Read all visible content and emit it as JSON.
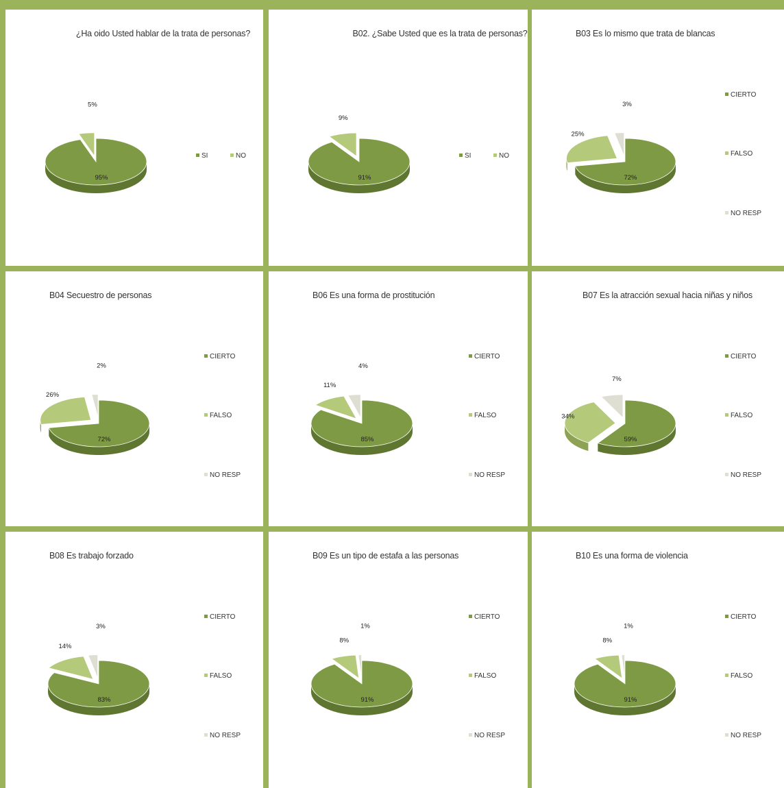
{
  "legend_colors": {
    "primary": "#7e9a44",
    "secondary": "#b5c97b",
    "tertiary": "#dedfd2"
  },
  "chart_data": [
    {
      "type": "pie",
      "title": "¿Ha oido Usted hablar de la trata de personas?",
      "legend": "right",
      "labels": [
        "SI",
        "NO"
      ],
      "values": [
        95,
        5
      ],
      "value_labels": [
        "95%",
        "5%"
      ]
    },
    {
      "type": "pie",
      "title": "B02. ¿Sabe Usted que es la trata de personas?",
      "legend": "right",
      "labels": [
        "SI",
        "NO"
      ],
      "values": [
        91,
        9
      ],
      "value_labels": [
        "91%",
        "9%"
      ]
    },
    {
      "type": "pie",
      "title": "B03 Es lo mismo que trata de blancas",
      "legend": "right",
      "labels": [
        "CIERTO",
        "FALSO",
        "NO RESP"
      ],
      "values": [
        72,
        25,
        3
      ],
      "value_labels": [
        "72%",
        "25%",
        "3%"
      ]
    },
    {
      "type": "pie",
      "title": "B04 Secuestro de personas",
      "legend": "right",
      "labels": [
        "CIERTO",
        "FALSO",
        "NO RESP"
      ],
      "values": [
        72,
        26,
        2
      ],
      "value_labels": [
        "72%",
        "26%",
        "2%"
      ]
    },
    {
      "type": "pie",
      "title": "B06 Es una forma de prostitución",
      "legend": "right",
      "labels": [
        "CIERTO",
        "FALSO",
        "NO RESP"
      ],
      "values": [
        85,
        11,
        4
      ],
      "value_labels": [
        "85%",
        "11%",
        "4%"
      ]
    },
    {
      "type": "pie",
      "title": "B07 Es la atracción sexual hacia niñas y niños",
      "legend": "right",
      "labels": [
        "CIERTO",
        "FALSO",
        "NO RESP"
      ],
      "values": [
        59,
        34,
        7
      ],
      "value_labels": [
        "59%",
        "34%",
        "7%"
      ]
    },
    {
      "type": "pie",
      "title": "B08 Es trabajo forzado",
      "legend": "right",
      "labels": [
        "CIERTO",
        "FALSO",
        "NO RESP"
      ],
      "values": [
        83,
        14,
        3
      ],
      "value_labels": [
        "83%",
        "14%",
        "3%"
      ]
    },
    {
      "type": "pie",
      "title": "B09 Es un tipo de estafa a las personas",
      "legend": "right",
      "labels": [
        "CIERTO",
        "FALSO",
        "NO RESP"
      ],
      "values": [
        91,
        8,
        1
      ],
      "value_labels": [
        "91%",
        "8%",
        "1%"
      ]
    },
    {
      "type": "pie",
      "title": "B10 Es una forma de violencia",
      "legend": "right",
      "labels": [
        "CIERTO",
        "FALSO",
        "NO RESP"
      ],
      "values": [
        91,
        8,
        1
      ],
      "value_labels": [
        "91%",
        "8%",
        "1%"
      ]
    }
  ]
}
